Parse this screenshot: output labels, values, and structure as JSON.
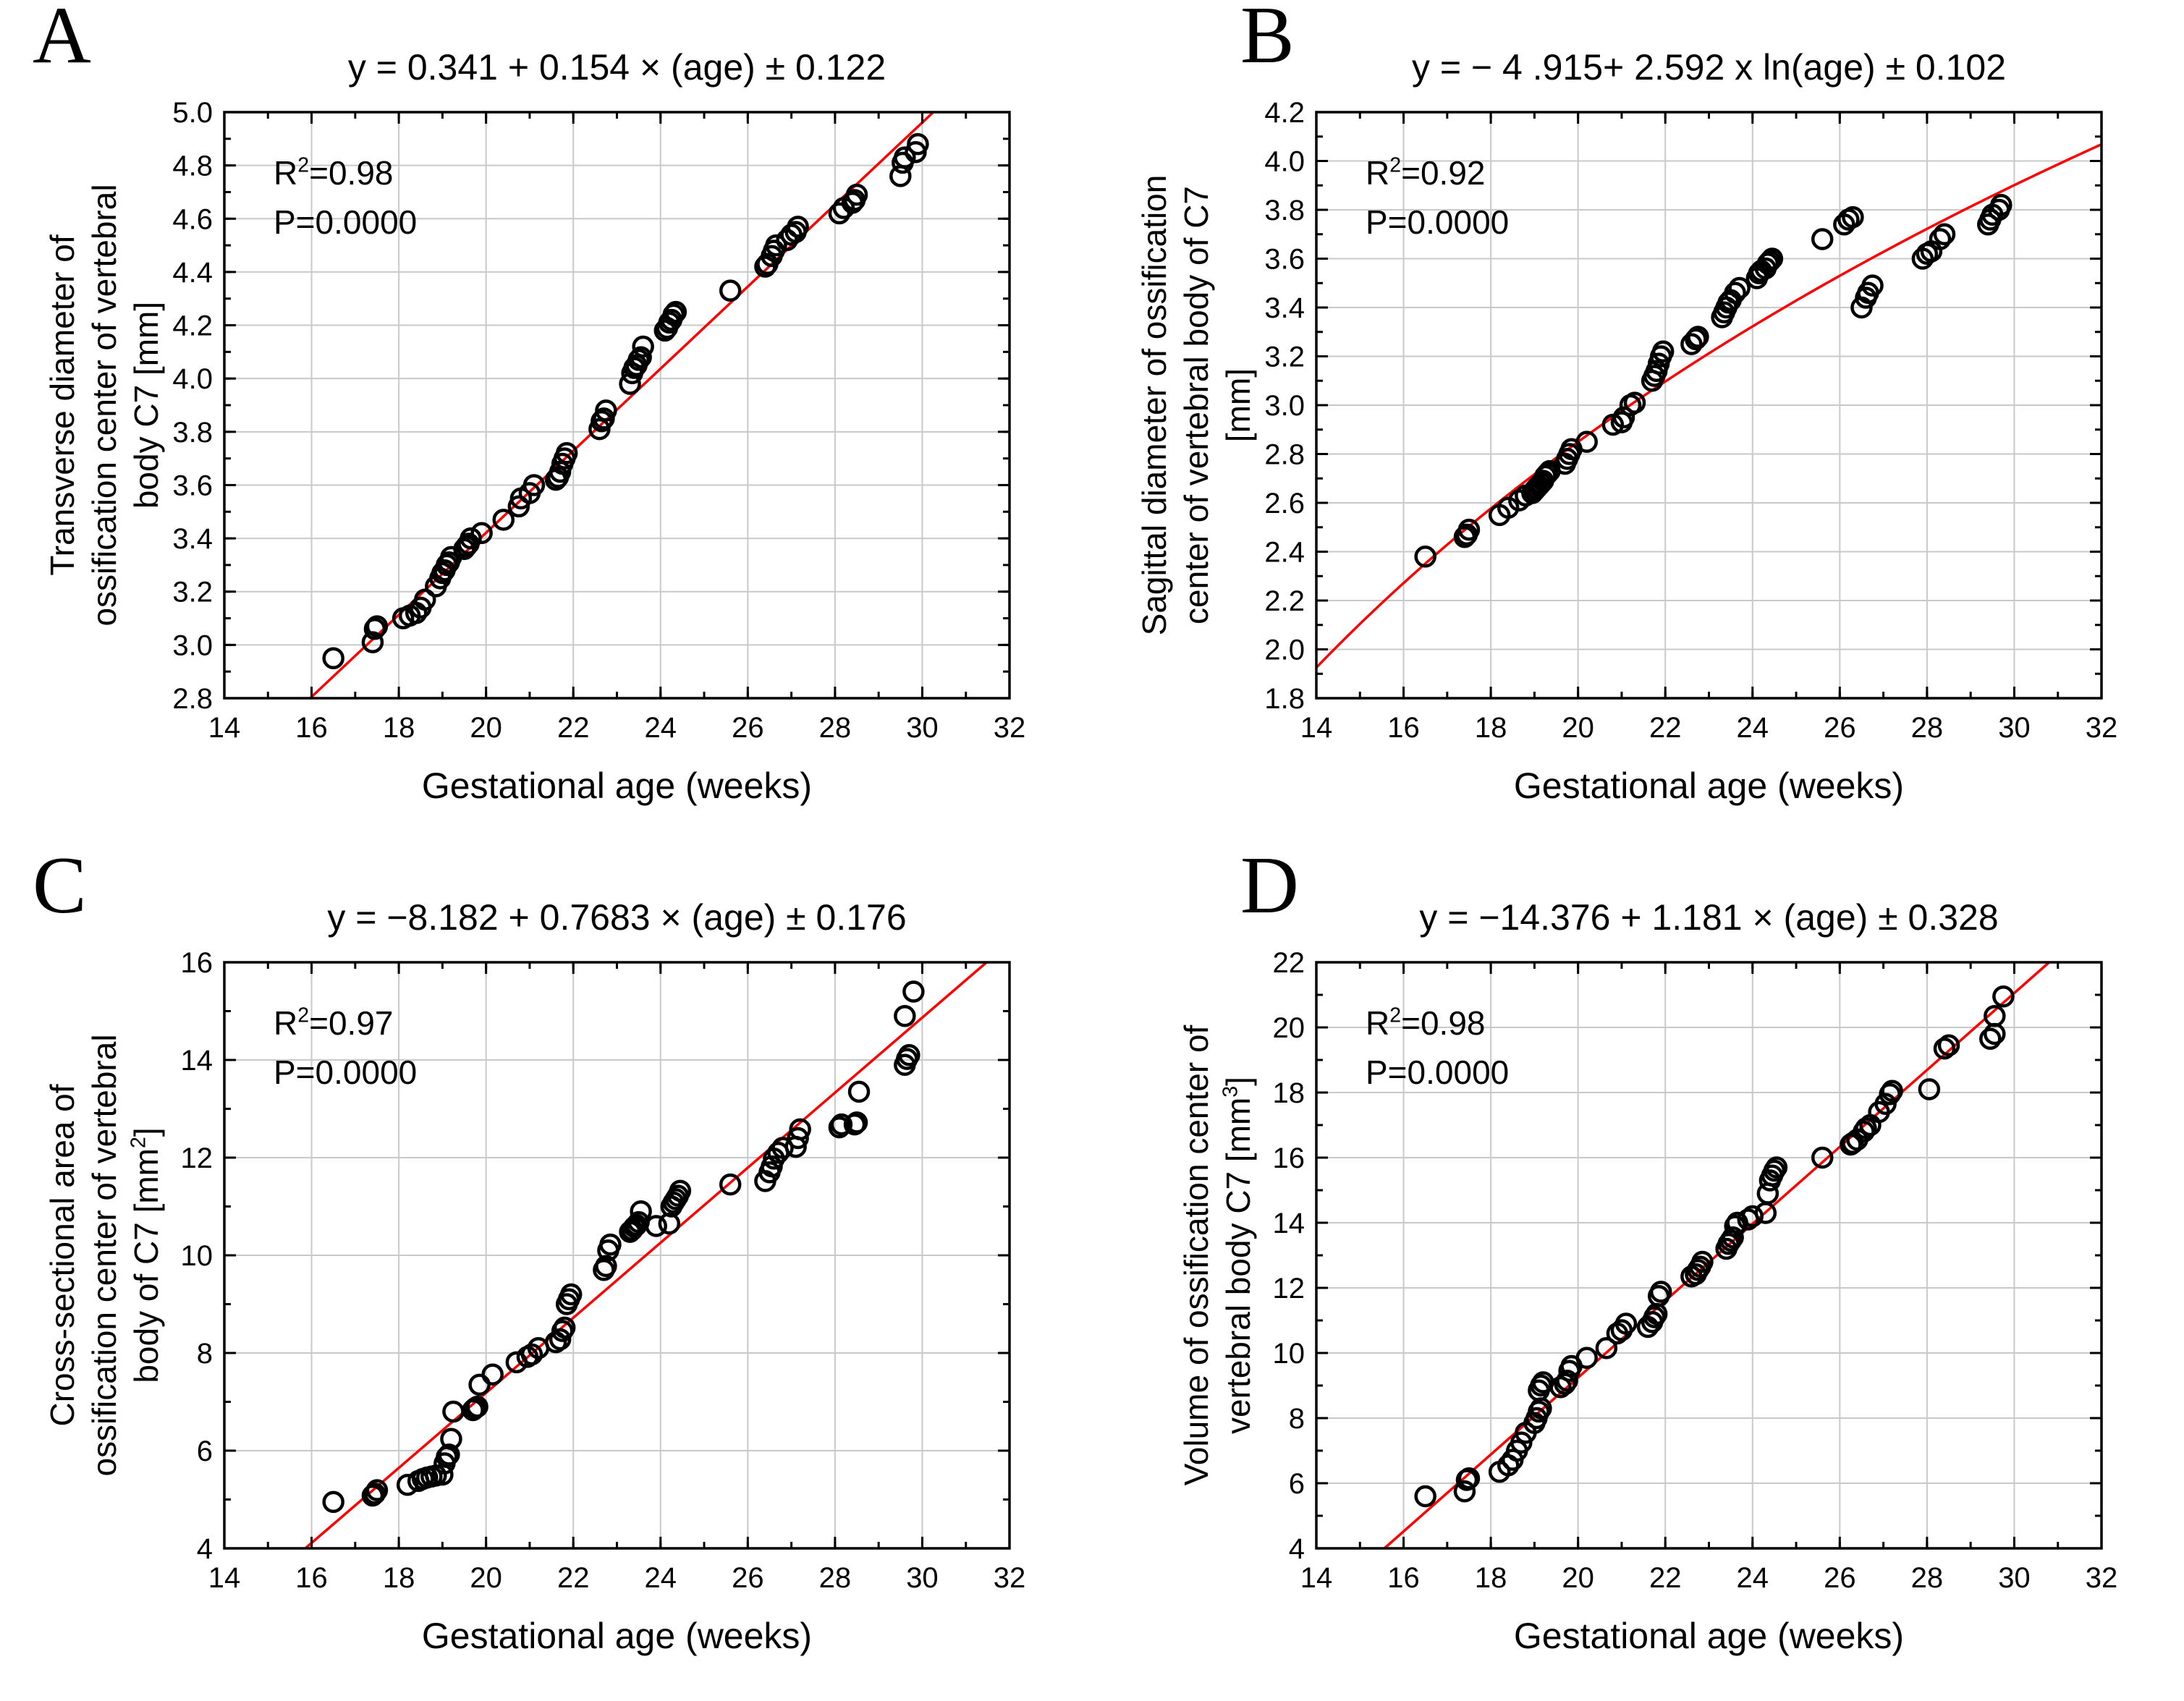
{
  "styles": {
    "grid_color": "#c9c9c9",
    "marker_color": "#000000",
    "regression_color": "#ff0000",
    "frame_color": "#000000"
  },
  "chart_data": [
    {
      "type": "scatter",
      "panel_label": "A",
      "title": "y = 0.341 + 0.154 × (age) ± 0.122",
      "annotation": {
        "r2": "R^2=0.98",
        "p": "P=0.0000"
      },
      "xlabel": "Gestational age (weeks)",
      "ylabel_lines": [
        "Transverse diameter of",
        "ossification center of vertebral",
        "body C7 [mm]"
      ],
      "xlim": [
        14,
        32
      ],
      "xtick_major": 2,
      "xtick_minor": 1,
      "ylim": [
        2.8,
        5.0
      ],
      "ytick_major": 0.2,
      "ytick_minor": 0.1,
      "ytick_decimals": 1,
      "grid": true,
      "legend_position": "none",
      "marker": "open-circle",
      "regression": {
        "kind": "linear",
        "intercept": 0.341,
        "slope": 0.154
      },
      "points": [
        [
          16.5,
          2.95
        ],
        [
          17.4,
          3.01
        ],
        [
          17.45,
          3.06
        ],
        [
          17.5,
          3.07
        ],
        [
          18.1,
          3.1
        ],
        [
          18.25,
          3.11
        ],
        [
          18.4,
          3.12
        ],
        [
          18.5,
          3.14
        ],
        [
          18.6,
          3.17
        ],
        [
          18.85,
          3.22
        ],
        [
          18.95,
          3.25
        ],
        [
          19.0,
          3.27
        ],
        [
          19.05,
          3.28
        ],
        [
          19.1,
          3.3
        ],
        [
          19.15,
          3.31
        ],
        [
          19.2,
          3.33
        ],
        [
          19.5,
          3.36
        ],
        [
          19.55,
          3.37
        ],
        [
          19.6,
          3.38
        ],
        [
          19.65,
          3.4
        ],
        [
          19.9,
          3.42
        ],
        [
          20.4,
          3.47
        ],
        [
          20.75,
          3.52
        ],
        [
          20.8,
          3.55
        ],
        [
          21.0,
          3.57
        ],
        [
          21.1,
          3.6
        ],
        [
          21.6,
          3.62
        ],
        [
          21.65,
          3.63
        ],
        [
          21.7,
          3.65
        ],
        [
          21.75,
          3.68
        ],
        [
          21.8,
          3.7
        ],
        [
          21.85,
          3.72
        ],
        [
          22.6,
          3.81
        ],
        [
          22.65,
          3.84
        ],
        [
          22.7,
          3.85
        ],
        [
          22.75,
          3.88
        ],
        [
          23.3,
          3.98
        ],
        [
          23.35,
          4.02
        ],
        [
          23.4,
          4.04
        ],
        [
          23.45,
          4.05
        ],
        [
          23.5,
          4.07
        ],
        [
          23.55,
          4.08
        ],
        [
          23.6,
          4.12
        ],
        [
          24.1,
          4.18
        ],
        [
          24.15,
          4.19
        ],
        [
          24.2,
          4.21
        ],
        [
          24.25,
          4.22
        ],
        [
          24.3,
          4.24
        ],
        [
          24.35,
          4.25
        ],
        [
          25.6,
          4.33
        ],
        [
          26.4,
          4.42
        ],
        [
          26.45,
          4.43
        ],
        [
          26.55,
          4.46
        ],
        [
          26.6,
          4.48
        ],
        [
          26.65,
          4.5
        ],
        [
          26.9,
          4.52
        ],
        [
          27.0,
          4.54
        ],
        [
          27.1,
          4.55
        ],
        [
          27.15,
          4.57
        ],
        [
          28.1,
          4.62
        ],
        [
          28.2,
          4.64
        ],
        [
          28.4,
          4.66
        ],
        [
          28.45,
          4.67
        ],
        [
          28.5,
          4.69
        ],
        [
          29.5,
          4.76
        ],
        [
          29.55,
          4.81
        ],
        [
          29.6,
          4.83
        ],
        [
          29.85,
          4.85
        ],
        [
          29.9,
          4.88
        ]
      ]
    },
    {
      "type": "scatter",
      "panel_label": "B",
      "title": "y = − 4 .915+ 2.592 x ln(age) ± 0.102",
      "annotation": {
        "r2": "R^2=0.92",
        "p": "P=0.0000"
      },
      "xlabel": "Gestational age (weeks)",
      "ylabel_lines": [
        "Sagittal diameter of ossification",
        "center of vertebral body of C7",
        "[mm]"
      ],
      "xlim": [
        14,
        32
      ],
      "xtick_major": 2,
      "xtick_minor": 1,
      "ylim": [
        1.8,
        4.2
      ],
      "ytick_major": 0.2,
      "ytick_minor": 0.1,
      "ytick_decimals": 1,
      "grid": true,
      "legend_position": "none",
      "marker": "open-circle",
      "regression": {
        "kind": "log",
        "intercept": -4.915,
        "coef": 2.592
      },
      "points": [
        [
          16.5,
          2.38
        ],
        [
          17.4,
          2.46
        ],
        [
          17.45,
          2.47
        ],
        [
          17.5,
          2.49
        ],
        [
          18.2,
          2.55
        ],
        [
          18.4,
          2.58
        ],
        [
          18.65,
          2.61
        ],
        [
          18.8,
          2.63
        ],
        [
          18.95,
          2.64
        ],
        [
          19.0,
          2.65
        ],
        [
          19.05,
          2.66
        ],
        [
          19.1,
          2.67
        ],
        [
          19.15,
          2.68
        ],
        [
          19.2,
          2.69
        ],
        [
          19.25,
          2.71
        ],
        [
          19.3,
          2.72
        ],
        [
          19.35,
          2.73
        ],
        [
          19.7,
          2.76
        ],
        [
          19.75,
          2.78
        ],
        [
          19.8,
          2.8
        ],
        [
          19.85,
          2.82
        ],
        [
          20.2,
          2.85
        ],
        [
          20.8,
          2.92
        ],
        [
          21.0,
          2.93
        ],
        [
          21.05,
          2.95
        ],
        [
          21.2,
          3.0
        ],
        [
          21.3,
          3.01
        ],
        [
          21.7,
          3.1
        ],
        [
          21.75,
          3.12
        ],
        [
          21.8,
          3.14
        ],
        [
          21.85,
          3.17
        ],
        [
          21.9,
          3.2
        ],
        [
          21.95,
          3.22
        ],
        [
          22.6,
          3.25
        ],
        [
          22.7,
          3.27
        ],
        [
          22.75,
          3.28
        ],
        [
          23.3,
          3.36
        ],
        [
          23.35,
          3.38
        ],
        [
          23.4,
          3.4
        ],
        [
          23.45,
          3.42
        ],
        [
          23.5,
          3.43
        ],
        [
          23.6,
          3.46
        ],
        [
          23.7,
          3.48
        ],
        [
          24.1,
          3.52
        ],
        [
          24.15,
          3.54
        ],
        [
          24.2,
          3.55
        ],
        [
          24.3,
          3.56
        ],
        [
          24.35,
          3.58
        ],
        [
          24.4,
          3.59
        ],
        [
          24.45,
          3.6
        ],
        [
          25.6,
          3.68
        ],
        [
          26.1,
          3.74
        ],
        [
          26.2,
          3.76
        ],
        [
          26.3,
          3.77
        ],
        [
          26.5,
          3.4
        ],
        [
          26.6,
          3.44
        ],
        [
          26.65,
          3.46
        ],
        [
          26.75,
          3.49
        ],
        [
          27.9,
          3.6
        ],
        [
          28.0,
          3.62
        ],
        [
          28.1,
          3.63
        ],
        [
          28.3,
          3.68
        ],
        [
          28.4,
          3.7
        ],
        [
          29.4,
          3.74
        ],
        [
          29.45,
          3.76
        ],
        [
          29.5,
          3.78
        ],
        [
          29.65,
          3.8
        ],
        [
          29.7,
          3.82
        ]
      ]
    },
    {
      "type": "scatter",
      "panel_label": "C",
      "title": "y = −8.182 + 0.7683 × (age) ± 0.176",
      "annotation": {
        "r2": "R^2=0.97",
        "p": "P=0.0000"
      },
      "xlabel": "Gestational age (weeks)",
      "ylabel_lines": [
        "Cross-sectional area of",
        "ossification center of vertebral",
        "body of C7 [mm^2]"
      ],
      "xlim": [
        14,
        32
      ],
      "xtick_major": 2,
      "xtick_minor": 1,
      "ylim": [
        4,
        16
      ],
      "ytick_major": 2,
      "ytick_minor": 1,
      "ytick_decimals": 0,
      "grid": true,
      "legend_position": "none",
      "marker": "open-circle",
      "regression": {
        "kind": "linear",
        "intercept": -8.182,
        "slope": 0.7683
      },
      "points": [
        [
          16.5,
          4.95
        ],
        [
          17.4,
          5.08
        ],
        [
          17.45,
          5.12
        ],
        [
          17.5,
          5.19
        ],
        [
          18.2,
          5.3
        ],
        [
          18.45,
          5.38
        ],
        [
          18.55,
          5.42
        ],
        [
          18.65,
          5.45
        ],
        [
          18.75,
          5.47
        ],
        [
          18.85,
          5.49
        ],
        [
          19.0,
          5.51
        ],
        [
          19.05,
          5.74
        ],
        [
          19.1,
          5.87
        ],
        [
          19.15,
          5.92
        ],
        [
          19.2,
          6.24
        ],
        [
          19.25,
          6.8
        ],
        [
          19.7,
          6.83
        ],
        [
          19.75,
          6.87
        ],
        [
          19.8,
          6.9
        ],
        [
          19.85,
          7.35
        ],
        [
          20.15,
          7.56
        ],
        [
          20.7,
          7.81
        ],
        [
          20.95,
          7.92
        ],
        [
          21.05,
          7.97
        ],
        [
          21.2,
          8.1
        ],
        [
          21.6,
          8.22
        ],
        [
          21.7,
          8.28
        ],
        [
          21.75,
          8.45
        ],
        [
          21.8,
          8.52
        ],
        [
          21.85,
          9.0
        ],
        [
          21.9,
          9.1
        ],
        [
          21.95,
          9.2
        ],
        [
          22.7,
          9.7
        ],
        [
          22.75,
          9.78
        ],
        [
          22.8,
          10.1
        ],
        [
          22.85,
          10.22
        ],
        [
          23.3,
          10.48
        ],
        [
          23.35,
          10.52
        ],
        [
          23.4,
          10.58
        ],
        [
          23.45,
          10.62
        ],
        [
          23.5,
          10.68
        ],
        [
          23.55,
          10.9
        ],
        [
          23.9,
          10.6
        ],
        [
          24.2,
          10.65
        ],
        [
          24.25,
          11.0
        ],
        [
          24.3,
          11.08
        ],
        [
          24.35,
          11.15
        ],
        [
          24.4,
          11.22
        ],
        [
          24.45,
          11.32
        ],
        [
          25.6,
          11.45
        ],
        [
          26.4,
          11.52
        ],
        [
          26.5,
          11.7
        ],
        [
          26.55,
          11.82
        ],
        [
          26.6,
          11.98
        ],
        [
          26.7,
          12.1
        ],
        [
          26.8,
          12.2
        ],
        [
          27.1,
          12.22
        ],
        [
          27.15,
          12.4
        ],
        [
          27.2,
          12.58
        ],
        [
          28.1,
          12.62
        ],
        [
          28.15,
          12.68
        ],
        [
          28.45,
          12.68
        ],
        [
          28.5,
          12.72
        ],
        [
          28.55,
          13.35
        ],
        [
          29.6,
          13.9
        ],
        [
          29.65,
          14.02
        ],
        [
          29.7,
          14.1
        ],
        [
          29.6,
          14.9
        ],
        [
          29.8,
          15.4
        ]
      ]
    },
    {
      "type": "scatter",
      "panel_label": "D",
      "title": "y = −14.376 + 1.181 × (age) ± 0.328",
      "annotation": {
        "r2": "R^2=0.98",
        "p": "P=0.0000"
      },
      "xlabel": "Gestational age (weeks)",
      "ylabel_lines": [
        "Volume of ossification center of",
        "vertebral body C7 [mm^3]"
      ],
      "xlim": [
        14,
        32
      ],
      "xtick_major": 2,
      "xtick_minor": 1,
      "ylim": [
        4,
        22
      ],
      "ytick_major": 2,
      "ytick_minor": 1,
      "ytick_decimals": 0,
      "grid": true,
      "legend_position": "none",
      "marker": "open-circle",
      "regression": {
        "kind": "linear",
        "intercept": -14.376,
        "slope": 1.181
      },
      "points": [
        [
          16.5,
          5.6
        ],
        [
          17.4,
          5.75
        ],
        [
          17.45,
          6.1
        ],
        [
          17.5,
          6.15
        ],
        [
          18.2,
          6.35
        ],
        [
          18.4,
          6.55
        ],
        [
          18.5,
          6.72
        ],
        [
          18.6,
          7.0
        ],
        [
          18.7,
          7.25
        ],
        [
          18.8,
          7.55
        ],
        [
          19.0,
          7.85
        ],
        [
          19.05,
          8.0
        ],
        [
          19.1,
          8.2
        ],
        [
          19.15,
          8.3
        ],
        [
          19.1,
          8.85
        ],
        [
          19.15,
          9.0
        ],
        [
          19.2,
          9.1
        ],
        [
          19.6,
          8.95
        ],
        [
          19.7,
          9.05
        ],
        [
          19.75,
          9.15
        ],
        [
          19.8,
          9.45
        ],
        [
          19.85,
          9.6
        ],
        [
          20.2,
          9.85
        ],
        [
          20.65,
          10.15
        ],
        [
          20.9,
          10.6
        ],
        [
          21.0,
          10.7
        ],
        [
          21.1,
          10.9
        ],
        [
          21.6,
          10.8
        ],
        [
          21.7,
          10.95
        ],
        [
          21.75,
          11.1
        ],
        [
          21.8,
          11.2
        ],
        [
          21.85,
          11.75
        ],
        [
          21.9,
          11.88
        ],
        [
          22.6,
          12.35
        ],
        [
          22.7,
          12.42
        ],
        [
          22.75,
          12.55
        ],
        [
          22.8,
          12.65
        ],
        [
          22.85,
          12.8
        ],
        [
          23.4,
          13.2
        ],
        [
          23.45,
          13.35
        ],
        [
          23.5,
          13.45
        ],
        [
          23.55,
          13.55
        ],
        [
          23.6,
          13.9
        ],
        [
          23.65,
          14.0
        ],
        [
          23.9,
          14.1
        ],
        [
          24.0,
          14.2
        ],
        [
          24.3,
          14.3
        ],
        [
          24.35,
          14.9
        ],
        [
          24.4,
          15.3
        ],
        [
          24.45,
          15.45
        ],
        [
          24.5,
          15.6
        ],
        [
          24.55,
          15.7
        ],
        [
          25.6,
          16.0
        ],
        [
          26.25,
          16.4
        ],
        [
          26.3,
          16.45
        ],
        [
          26.4,
          16.55
        ],
        [
          26.55,
          16.8
        ],
        [
          26.6,
          16.9
        ],
        [
          26.7,
          17.0
        ],
        [
          26.9,
          17.4
        ],
        [
          27.05,
          17.65
        ],
        [
          27.15,
          17.95
        ],
        [
          27.2,
          18.05
        ],
        [
          28.05,
          18.1
        ],
        [
          28.4,
          19.35
        ],
        [
          28.5,
          19.45
        ],
        [
          29.45,
          19.65
        ],
        [
          29.55,
          19.8
        ],
        [
          29.55,
          20.35
        ],
        [
          29.75,
          20.95
        ]
      ]
    }
  ]
}
